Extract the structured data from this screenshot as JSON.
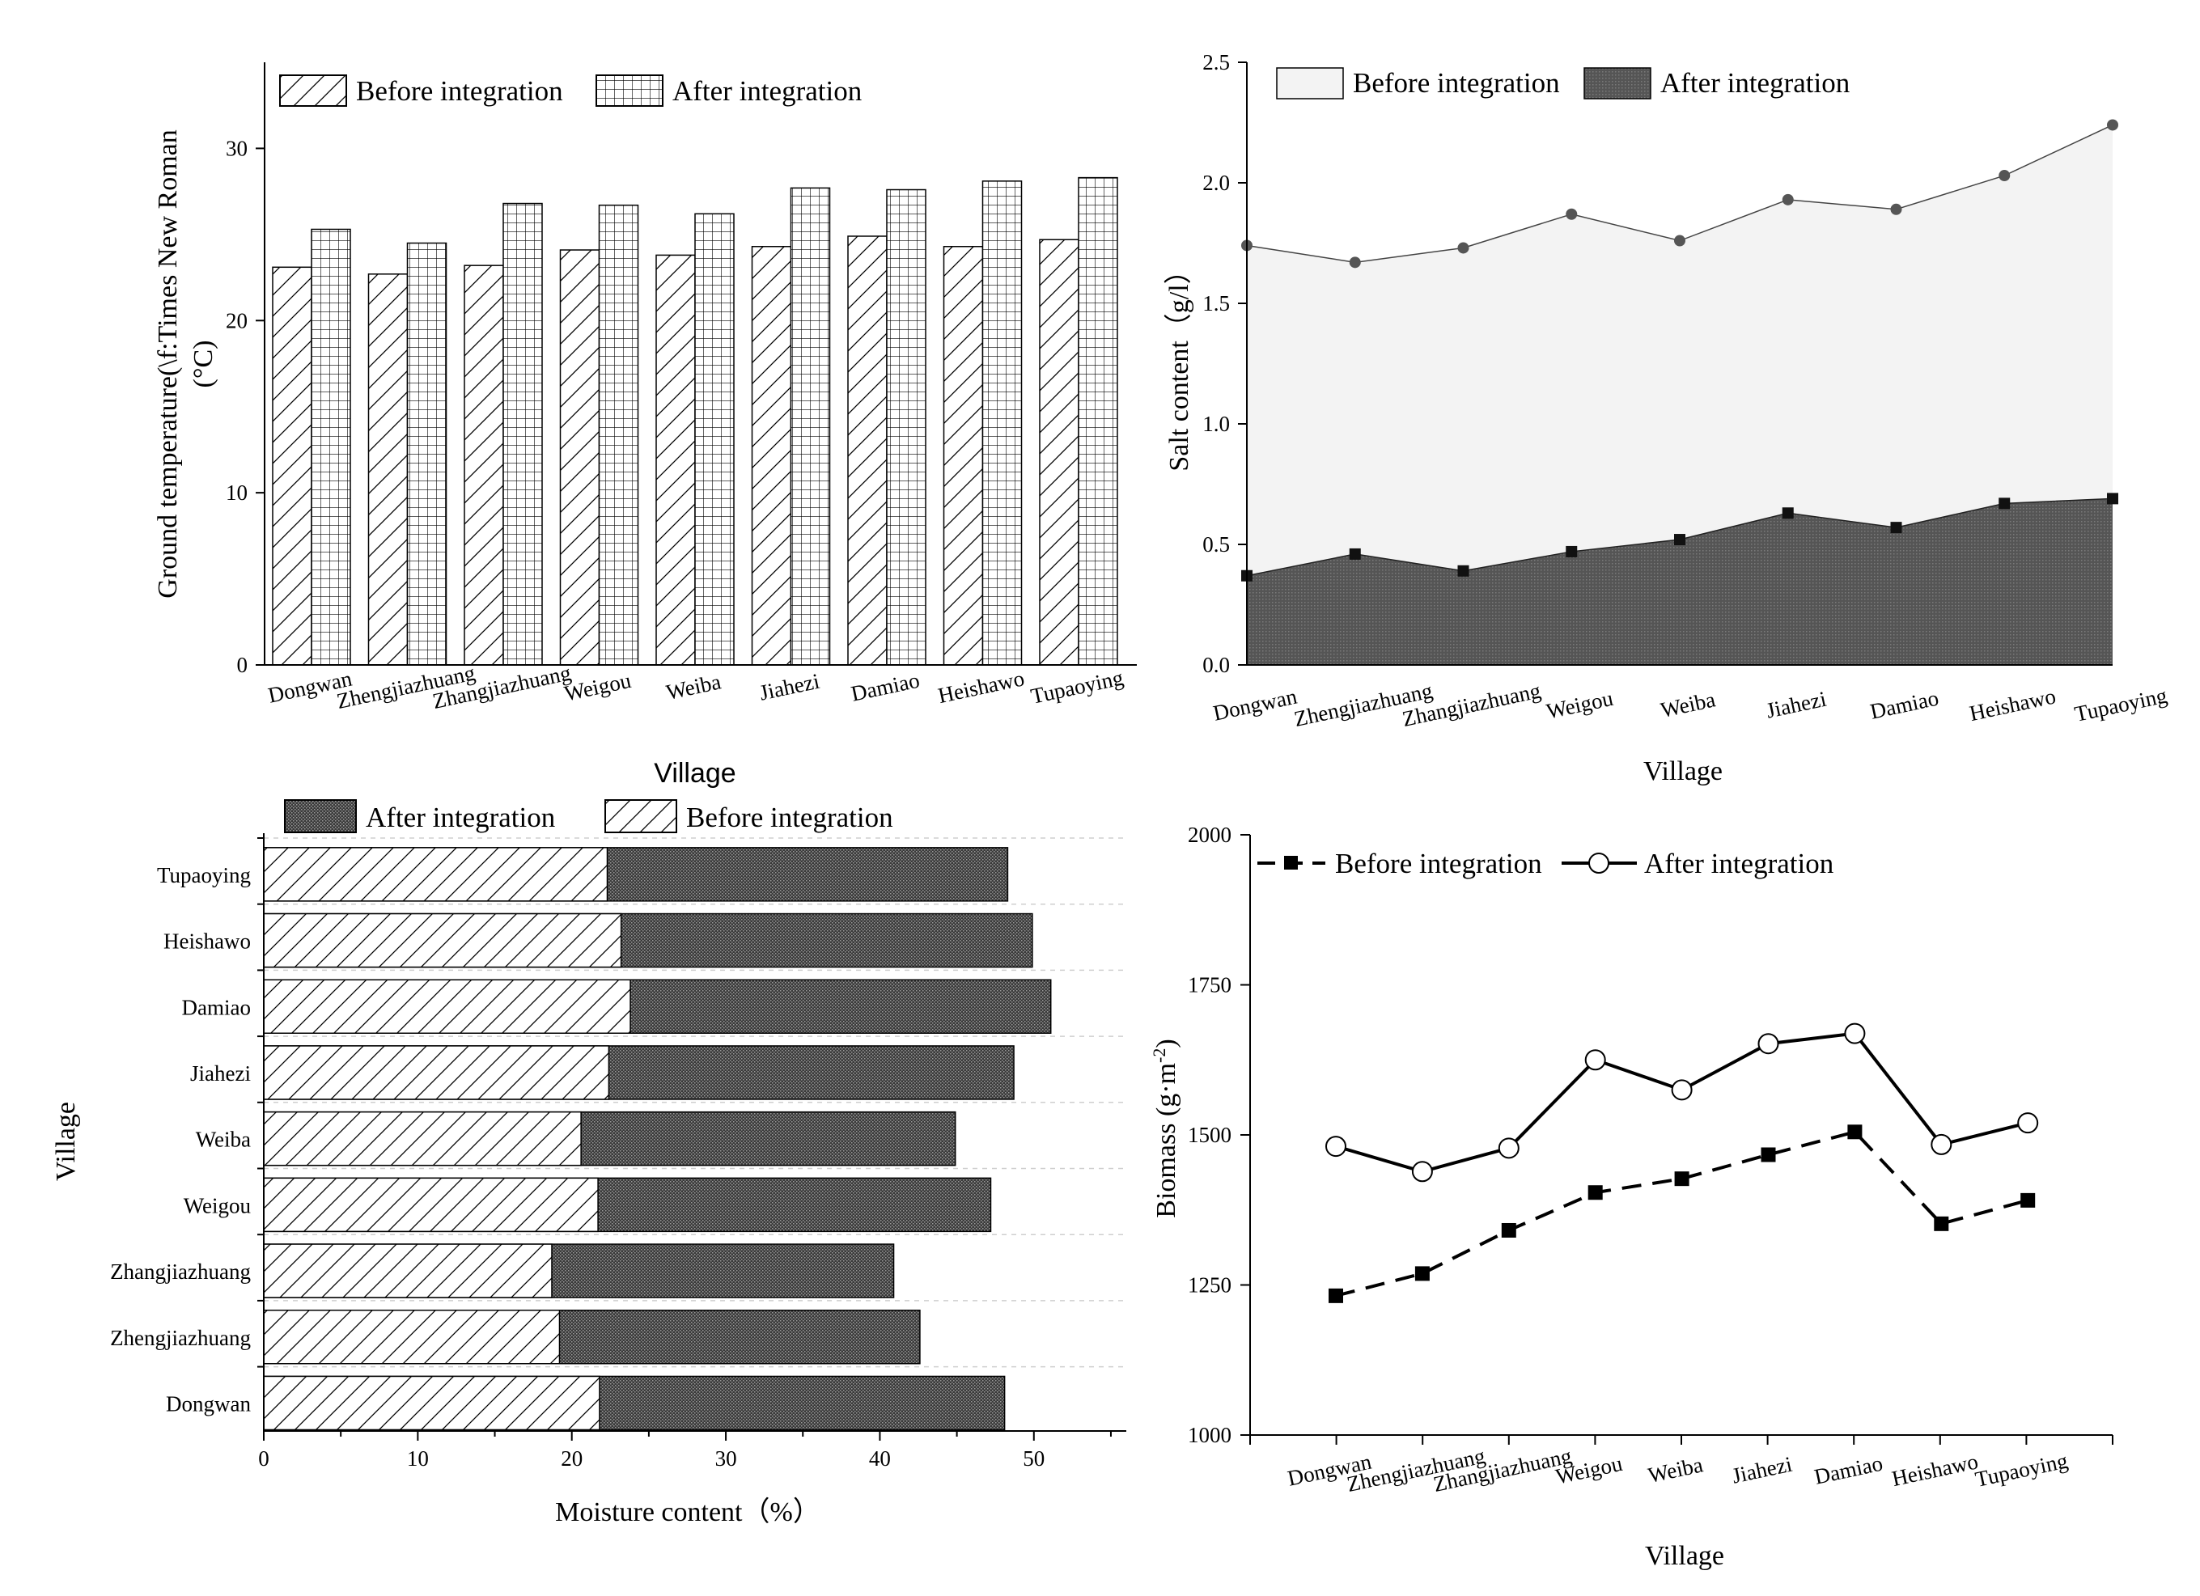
{
  "chart_data": [
    {
      "id": "temperature",
      "type": "bar",
      "title": "",
      "xlabel": "Village",
      "ylabel": "Ground temperature(\\f:Times New Roman (°C)",
      "ylabel_lines": [
        "Ground temperature(\\f:Times New Roman",
        "(°C)"
      ],
      "ylim": [
        0,
        35
      ],
      "yticks": [
        0,
        10,
        20,
        30
      ],
      "categories": [
        "Dongwan",
        "Zhengjiazhuang",
        "Zhangjiazhuang",
        "Weigou",
        "Weiba",
        "Jiahezi",
        "Damiao",
        "Heishawo",
        "Tupaoying"
      ],
      "series": [
        {
          "name": "Before integration",
          "pattern": "diagonal-hatch",
          "values": [
            23.1,
            22.7,
            23.2,
            24.1,
            23.8,
            24.3,
            24.9,
            24.3,
            24.7
          ]
        },
        {
          "name": "After integration",
          "pattern": "grid-hatch",
          "values": [
            25.3,
            24.5,
            26.8,
            26.7,
            26.2,
            27.7,
            27.6,
            28.1,
            28.3
          ]
        }
      ],
      "legend": "top-left"
    },
    {
      "id": "salt",
      "type": "area",
      "title": "",
      "xlabel": "Village",
      "ylabel": "Salt content（g/l）",
      "ylim": [
        0,
        2.5
      ],
      "yticks": [
        "0.0",
        "0.5",
        "1.0",
        "1.5",
        "2.0",
        "2.5"
      ],
      "categories": [
        "Dongwan",
        "Zhengjiazhuang",
        "Zhangjiazhuang",
        "Weigou",
        "Weiba",
        "Jiahezi",
        "Damiao",
        "Heishawo",
        "Tupaoying"
      ],
      "series": [
        {
          "name": "Before integration",
          "fill": "#f3f3f3",
          "values": [
            1.74,
            1.67,
            1.73,
            1.87,
            1.76,
            1.93,
            1.89,
            2.03,
            2.24
          ]
        },
        {
          "name": "After integration",
          "fill": "#5c5c5c",
          "values": [
            0.37,
            0.46,
            0.39,
            0.47,
            0.52,
            0.63,
            0.57,
            0.67,
            0.69
          ]
        }
      ],
      "legend": "top-left"
    },
    {
      "id": "moisture",
      "type": "bar",
      "orientation": "horizontal",
      "title": "",
      "xlabel": "Moisture content（%）",
      "ylabel": "Village",
      "xlim": [
        0,
        56
      ],
      "xticks": [
        0,
        10,
        20,
        30,
        40,
        50
      ],
      "categories": [
        "Dongwan",
        "Zhengjiazhuang",
        "Zhangjiazhuang",
        "Weigou",
        "Weiba",
        "Jiahezi",
        "Damiao",
        "Heishawo",
        "Tupaoying"
      ],
      "series": [
        {
          "name": "After integration",
          "pattern": "dense-dots",
          "values": [
            48.1,
            42.6,
            40.9,
            47.2,
            44.9,
            48.7,
            51.1,
            49.9,
            48.3
          ]
        },
        {
          "name": "Before integration",
          "pattern": "diagonal-hatch",
          "values": [
            21.8,
            19.2,
            18.7,
            21.7,
            20.6,
            22.4,
            23.8,
            23.2,
            22.3
          ]
        }
      ],
      "legend": "top"
    },
    {
      "id": "biomass",
      "type": "line",
      "title": "",
      "xlabel": "Village",
      "ylabel": "Biomass (g·m-2)",
      "ylabel_base": "Biomass (g·m",
      "ylabel_sup": "-2",
      "ylabel_close": ")",
      "ylim": [
        1000,
        2000
      ],
      "yticks": [
        1000,
        1250,
        1500,
        1750,
        2000
      ],
      "categories": [
        "Dongwan",
        "Zhengjiazhuang",
        "Zhangjiazhuang",
        "Weigou",
        "Weiba",
        "Jiahezi",
        "Damiao",
        "Heishawo",
        "Tupaoying"
      ],
      "series": [
        {
          "name": "Before integration",
          "style": "dashed",
          "marker": "filled-square",
          "values": [
            1232,
            1269,
            1341,
            1404,
            1427,
            1467,
            1505,
            1352,
            1391
          ]
        },
        {
          "name": "After integration",
          "style": "solid",
          "marker": "open-circle",
          "values": [
            1481,
            1439,
            1478,
            1625,
            1575,
            1652,
            1669,
            1484,
            1520
          ]
        }
      ],
      "legend": "top-left"
    }
  ]
}
